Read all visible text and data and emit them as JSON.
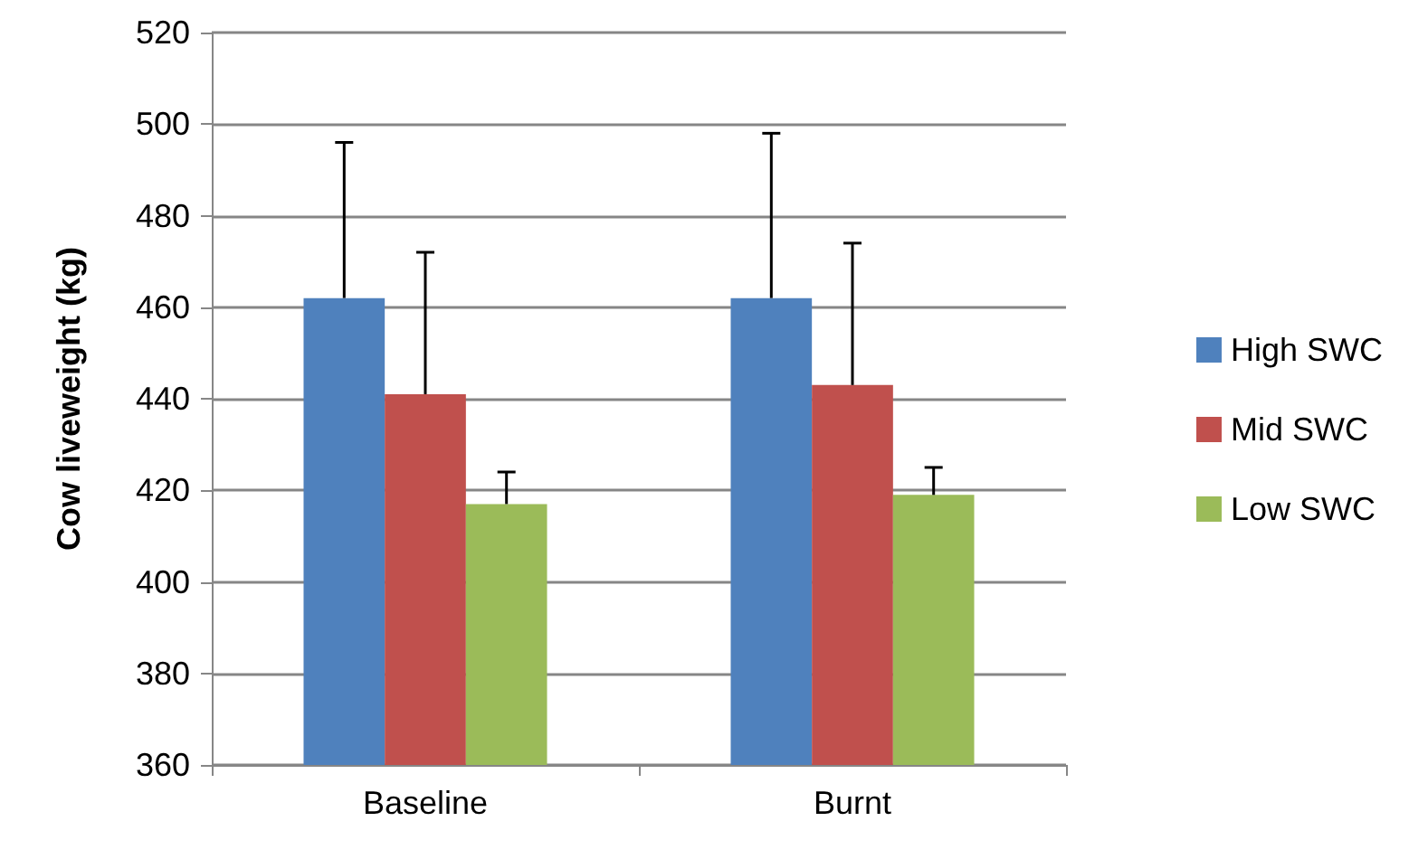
{
  "chart_data": {
    "type": "bar",
    "ylabel": "Cow liveweight (kg)",
    "categories": [
      "Baseline",
      "Burnt"
    ],
    "series": [
      {
        "name": "High SWC",
        "color": "#4f81bd",
        "values": [
          462,
          462
        ],
        "errors": [
          [
            462,
            496
          ],
          [
            462,
            498
          ]
        ]
      },
      {
        "name": "Mid SWC",
        "color": "#c0504d",
        "values": [
          441,
          443
        ],
        "errors": [
          [
            441,
            472
          ],
          [
            443,
            474
          ]
        ]
      },
      {
        "name": "Low SWC",
        "color": "#9bbb59",
        "values": [
          417,
          419
        ],
        "errors": [
          [
            417,
            424
          ],
          [
            419,
            425
          ]
        ]
      }
    ],
    "ylim": [
      360,
      520
    ],
    "yticks": [
      360,
      380,
      400,
      420,
      440,
      460,
      480,
      500,
      520
    ],
    "grid": "y",
    "legend": "right"
  }
}
